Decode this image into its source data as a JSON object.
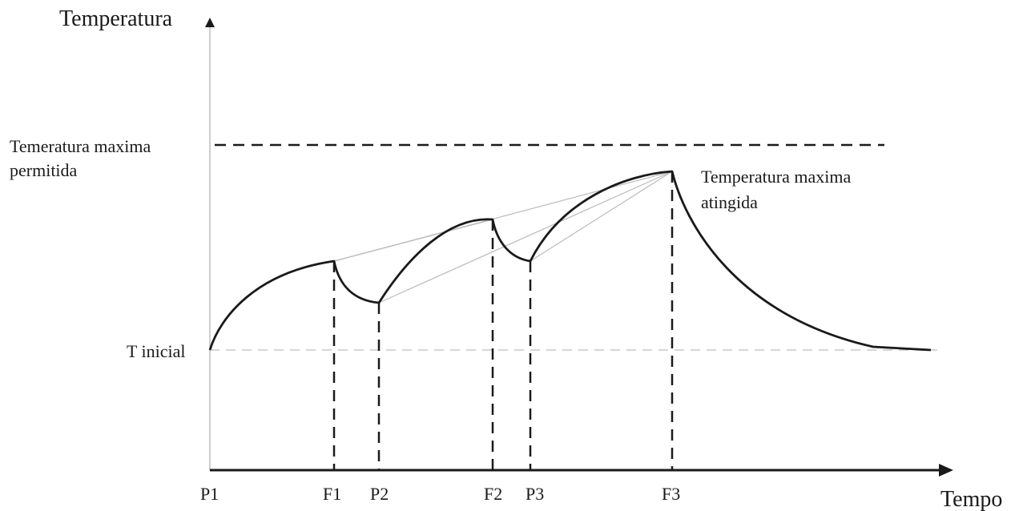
{
  "axes": {
    "y_title": "Temperatura",
    "x_title": "Tempo"
  },
  "levels": {
    "max_allowed_line1": "Temeratura maxima",
    "max_allowed_line2": "permitida",
    "initial": "T inicial"
  },
  "annotation": {
    "max_reached_line1": "Temperatura maxima",
    "max_reached_line2": "atingida"
  },
  "time_marks": [
    "P1",
    "F1",
    "P2",
    "F2",
    "P3",
    "F3"
  ],
  "colors": {
    "curve": "#1a1a1a",
    "axis": "#1a1a1a",
    "guide": "#bbbbbb",
    "dashed": "#1a1a1a"
  }
}
